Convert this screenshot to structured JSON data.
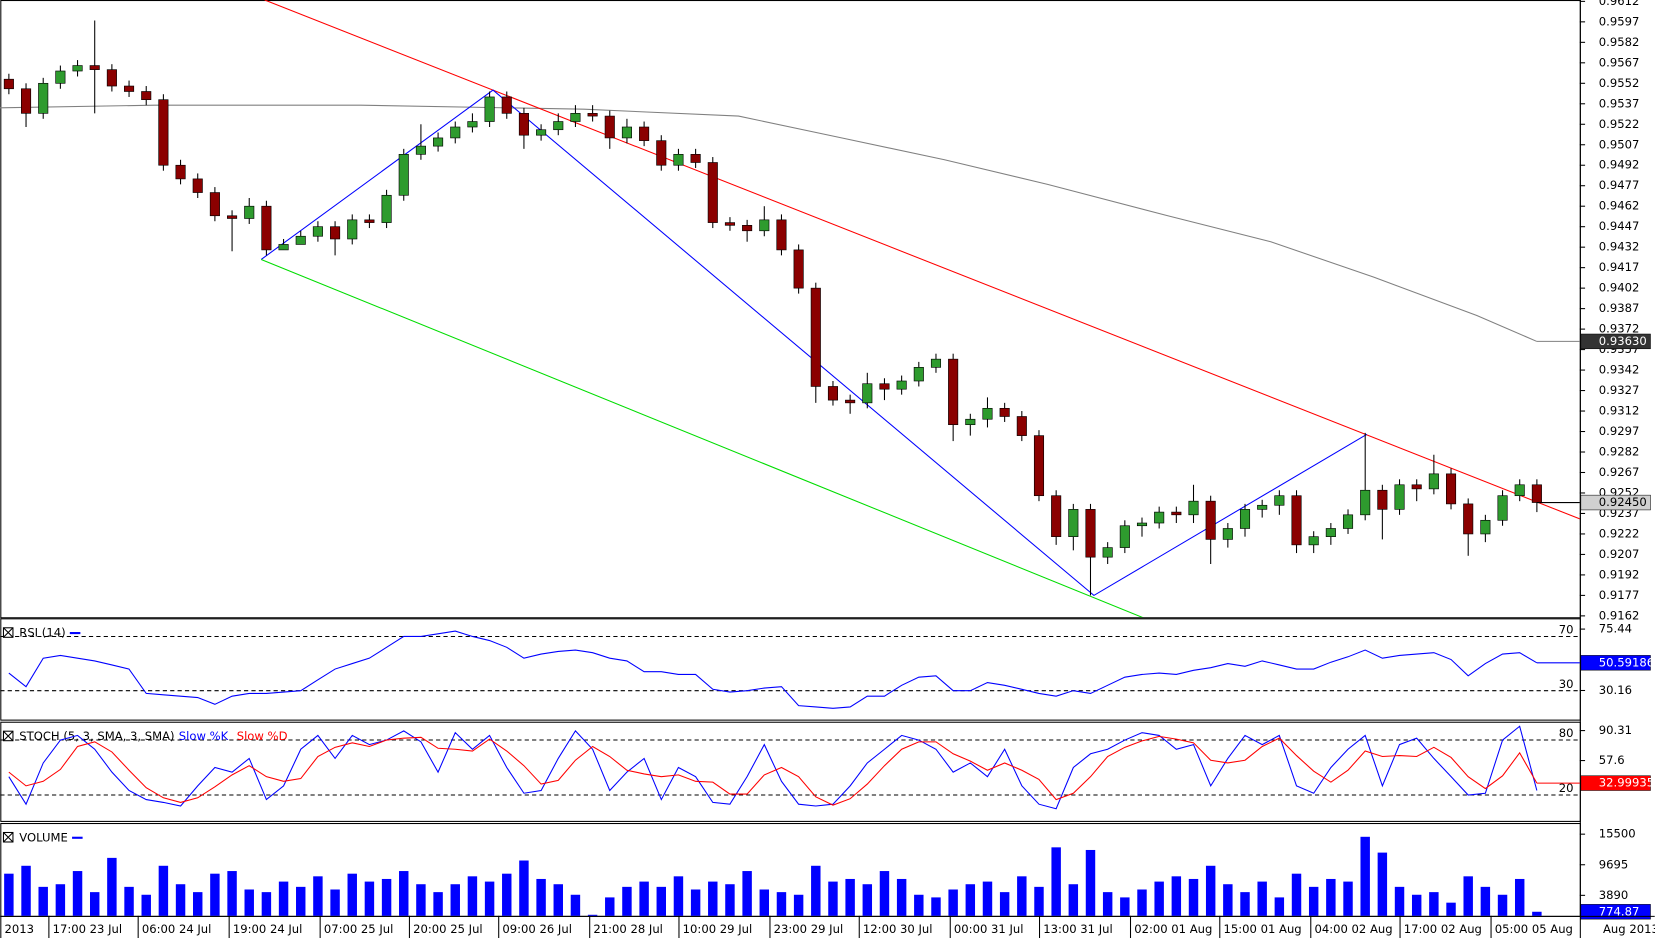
{
  "chart_data": [
    {
      "type": "candlestick",
      "xlim": [
        0,
        92
      ],
      "ylim": [
        0.9161,
        0.9613
      ],
      "yticks": [
        0.9162,
        0.9177,
        0.9192,
        0.9207,
        0.9222,
        0.9237,
        0.9252,
        0.9267,
        0.9282,
        0.9297,
        0.9312,
        0.9327,
        0.9342,
        0.9357,
        0.9372,
        0.9387,
        0.9402,
        0.9417,
        0.9432,
        0.9447,
        0.9462,
        0.9477,
        0.9492,
        0.9507,
        0.9522,
        0.9537,
        0.9552,
        0.9567,
        0.9582,
        0.9597,
        0.9612
      ],
      "up_color": "#2e9b2e",
      "down_color": "#8b0000",
      "open": [
        0.9555,
        0.9548,
        0.953,
        0.9552,
        0.9561,
        0.9565,
        0.9562,
        0.955,
        0.9546,
        0.954,
        0.9492,
        0.9482,
        0.9472,
        0.9455,
        0.9453,
        0.9462,
        0.943,
        0.9434,
        0.944,
        0.9447,
        0.9438,
        0.9452,
        0.945,
        0.947,
        0.95,
        0.9506,
        0.9512,
        0.952,
        0.9524,
        0.9542,
        0.953,
        0.9514,
        0.9518,
        0.9524,
        0.953,
        0.9528,
        0.9512,
        0.952,
        0.951,
        0.9492,
        0.95,
        0.9494,
        0.945,
        0.9448,
        0.9444,
        0.9452,
        0.943,
        0.9402,
        0.933,
        0.932,
        0.9318,
        0.9332,
        0.9328,
        0.9334,
        0.9344,
        0.935,
        0.9302,
        0.9306,
        0.9314,
        0.9308,
        0.9294,
        0.925,
        0.922,
        0.924,
        0.9205,
        0.9212,
        0.9228,
        0.923,
        0.9238,
        0.9236,
        0.9246,
        0.9218,
        0.9226,
        0.924,
        0.9243,
        0.925,
        0.9214,
        0.922,
        0.9226,
        0.9236,
        0.9254,
        0.924,
        0.9258,
        0.9255,
        0.9266,
        0.9244,
        0.9222,
        0.9232,
        0.925,
        0.9258
      ],
      "high": [
        0.9559,
        0.9552,
        0.9556,
        0.9565,
        0.9569,
        0.9598,
        0.9566,
        0.9554,
        0.955,
        0.9544,
        0.9496,
        0.9486,
        0.9476,
        0.9459,
        0.9468,
        0.9466,
        0.9438,
        0.9444,
        0.9451,
        0.9451,
        0.9456,
        0.9456,
        0.9474,
        0.9504,
        0.9522,
        0.9516,
        0.9524,
        0.953,
        0.9546,
        0.9546,
        0.9534,
        0.9522,
        0.953,
        0.9536,
        0.9536,
        0.9532,
        0.9526,
        0.9524,
        0.9514,
        0.9504,
        0.9504,
        0.9498,
        0.9454,
        0.9452,
        0.9462,
        0.9456,
        0.9434,
        0.9406,
        0.9334,
        0.9324,
        0.934,
        0.9336,
        0.9338,
        0.9348,
        0.9354,
        0.9354,
        0.931,
        0.9322,
        0.9318,
        0.9312,
        0.9298,
        0.9254,
        0.9244,
        0.9244,
        0.9216,
        0.9232,
        0.9234,
        0.9242,
        0.9242,
        0.9258,
        0.925,
        0.923,
        0.9244,
        0.9247,
        0.9254,
        0.9254,
        0.9224,
        0.923,
        0.924,
        0.9296,
        0.9258,
        0.9262,
        0.9262,
        0.928,
        0.927,
        0.9248,
        0.9236,
        0.9254,
        0.9262,
        0.9262
      ],
      "low": [
        0.9544,
        0.952,
        0.9526,
        0.9548,
        0.9557,
        0.953,
        0.9546,
        0.9542,
        0.9536,
        0.9488,
        0.9478,
        0.9468,
        0.9451,
        0.9429,
        0.9449,
        0.9426,
        0.943,
        0.9436,
        0.9436,
        0.9426,
        0.9434,
        0.9446,
        0.9446,
        0.9466,
        0.9496,
        0.9502,
        0.9508,
        0.9516,
        0.952,
        0.9526,
        0.9504,
        0.951,
        0.9514,
        0.952,
        0.9524,
        0.9504,
        0.9508,
        0.9506,
        0.9488,
        0.9488,
        0.949,
        0.9446,
        0.9444,
        0.9436,
        0.944,
        0.9426,
        0.9398,
        0.9318,
        0.9316,
        0.931,
        0.9314,
        0.932,
        0.9324,
        0.933,
        0.934,
        0.929,
        0.9294,
        0.93,
        0.9304,
        0.929,
        0.9246,
        0.9214,
        0.921,
        0.9177,
        0.92,
        0.9208,
        0.922,
        0.9226,
        0.923,
        0.923,
        0.92,
        0.9212,
        0.922,
        0.9234,
        0.9236,
        0.9208,
        0.9208,
        0.9214,
        0.9222,
        0.9232,
        0.9218,
        0.9236,
        0.9246,
        0.9251,
        0.924,
        0.9206,
        0.9216,
        0.9228,
        0.9246,
        0.9238
      ],
      "close": [
        0.9548,
        0.953,
        0.9552,
        0.9561,
        0.9565,
        0.9562,
        0.955,
        0.9546,
        0.954,
        0.9492,
        0.9482,
        0.9472,
        0.9455,
        0.9453,
        0.9462,
        0.943,
        0.9434,
        0.944,
        0.9447,
        0.9438,
        0.9452,
        0.945,
        0.947,
        0.95,
        0.9506,
        0.9512,
        0.952,
        0.9524,
        0.9542,
        0.953,
        0.9514,
        0.9518,
        0.9524,
        0.953,
        0.9528,
        0.9512,
        0.952,
        0.951,
        0.9492,
        0.95,
        0.9494,
        0.945,
        0.9448,
        0.9444,
        0.9452,
        0.943,
        0.9402,
        0.933,
        0.932,
        0.9318,
        0.9332,
        0.9328,
        0.9334,
        0.9344,
        0.935,
        0.9302,
        0.9306,
        0.9314,
        0.9308,
        0.9294,
        0.925,
        0.922,
        0.924,
        0.9205,
        0.9212,
        0.9228,
        0.923,
        0.9238,
        0.9236,
        0.9246,
        0.9218,
        0.9226,
        0.924,
        0.9243,
        0.925,
        0.9214,
        0.922,
        0.9226,
        0.9236,
        0.9254,
        0.924,
        0.9258,
        0.9255,
        0.9266,
        0.9244,
        0.9222,
        0.9232,
        0.925,
        0.9258,
        0.9245
      ],
      "last_label": {
        "value": 0.9245,
        "label": "0.92450"
      },
      "overlays": [
        {
          "color": "#808080",
          "x": [
            0,
            9,
            21,
            34,
            43,
            49,
            55,
            61,
            68,
            74,
            80,
            86,
            89.5
          ],
          "values": [
            0.9534,
            0.9536,
            0.9536,
            0.9533,
            0.9528,
            0.9512,
            0.9496,
            0.9478,
            0.9455,
            0.9436,
            0.941,
            0.9382,
            0.9363
          ],
          "end_label": {
            "value": 0.9363,
            "label": "0.93630"
          }
        },
        {
          "color": "#ff0000",
          "x": [
            15.4,
            92
          ],
          "values": [
            0.9613,
            0.9233
          ]
        },
        {
          "color": "#0000ff",
          "x": [
            15.2,
            28.7,
            63.7,
            79.6
          ],
          "values": [
            0.9423,
            0.9547,
            0.9177,
            0.9295
          ]
        },
        {
          "color": "#00dd00",
          "x": [
            15.2,
            66.7
          ],
          "values": [
            0.9423,
            0.916
          ]
        }
      ]
    },
    {
      "type": "line",
      "title": "RSI (14)",
      "xlim": [
        0,
        92
      ],
      "ylim": [
        8.7,
        83.4
      ],
      "yticks": [
        30.16,
        75.44
      ],
      "levels": [
        70,
        30
      ],
      "series": [
        {
          "color": "#0000ff",
          "box": "#0000ff",
          "values": [
            43,
            33,
            54,
            56,
            54,
            52,
            49,
            46,
            28,
            27,
            26,
            25,
            20,
            26,
            28,
            28,
            29,
            30,
            38,
            46,
            50,
            54,
            62,
            70,
            70,
            72,
            74,
            70,
            67,
            62,
            54,
            57,
            59,
            60,
            58,
            54,
            52,
            44,
            44,
            42,
            42,
            31,
            29,
            30,
            32,
            33,
            19,
            18,
            17,
            18,
            26,
            26,
            34,
            40,
            41,
            30,
            30,
            36,
            34,
            31,
            28,
            26,
            30,
            28,
            34,
            40,
            42,
            43,
            42,
            45,
            47,
            50,
            48,
            52,
            49,
            46,
            46,
            51,
            55,
            60,
            54,
            56,
            57,
            58,
            53,
            41,
            50,
            57,
            58,
            50.59186
          ]
        }
      ]
    },
    {
      "type": "line",
      "title": "STOCH (5, 3, SMA, 3, SMA)",
      "xlim": [
        0,
        92
      ],
      "ylim": [
        -8.2,
        100
      ],
      "yticks": [
        57.6,
        90.31
      ],
      "levels": [
        80,
        20
      ],
      "series": [
        {
          "name": "Slow %K",
          "color": "#0000ff",
          "values": [
            40,
            10,
            55,
            80,
            85,
            70,
            45,
            25,
            15,
            12,
            8,
            30,
            50,
            45,
            60,
            15,
            30,
            70,
            85,
            60,
            85,
            75,
            80,
            90,
            78,
            45,
            88,
            70,
            85,
            50,
            22,
            25,
            60,
            90,
            70,
            25,
            45,
            60,
            15,
            50,
            40,
            12,
            10,
            40,
            75,
            35,
            10,
            8,
            10,
            30,
            55,
            70,
            85,
            80,
            70,
            45,
            55,
            40,
            70,
            30,
            10,
            5,
            50,
            65,
            70,
            80,
            88,
            85,
            70,
            75,
            30,
            60,
            85,
            75,
            85,
            30,
            22,
            50,
            70,
            85,
            30,
            75,
            82,
            60,
            40,
            20,
            22,
            80,
            95,
            25
          ]
        },
        {
          "name": "Slow %D",
          "color": "#ff0000",
          "box": "#ff0000",
          "values": [
            45,
            30,
            35,
            48,
            73,
            78,
            67,
            47,
            28,
            17,
            12,
            17,
            29,
            42,
            52,
            40,
            35,
            38,
            62,
            72,
            77,
            73,
            80,
            82,
            83,
            71,
            70,
            68,
            81,
            68,
            52,
            32,
            36,
            58,
            73,
            62,
            47,
            43,
            40,
            42,
            35,
            34,
            21,
            21,
            42,
            50,
            40,
            18,
            9,
            16,
            32,
            52,
            70,
            78,
            78,
            65,
            57,
            47,
            55,
            47,
            37,
            15,
            22,
            40,
            62,
            72,
            79,
            84,
            81,
            77,
            58,
            55,
            58,
            73,
            82,
            63,
            46,
            34,
            47,
            68,
            62,
            63,
            62,
            72,
            61,
            40,
            27,
            41,
            66,
            32.99935
          ]
        }
      ]
    },
    {
      "type": "bar",
      "title": "VOLUME",
      "xlim": [
        0,
        92
      ],
      "ylim": [
        0,
        17620
      ],
      "yticks": [
        3890,
        9695,
        15500
      ],
      "color": "#0000ff",
      "box": "#0000ff",
      "values": [
        8000,
        9500,
        5500,
        6000,
        8500,
        4500,
        11000,
        5500,
        4000,
        9500,
        6000,
        4500,
        8000,
        8500,
        5000,
        4500,
        6500,
        5500,
        7500,
        5000,
        8000,
        6500,
        7000,
        8500,
        6000,
        4500,
        6000,
        7500,
        6500,
        8000,
        10500,
        7000,
        6000,
        4000,
        200,
        3500,
        5500,
        6500,
        5500,
        7500,
        5000,
        6500,
        6000,
        8500,
        5000,
        4500,
        4000,
        9500,
        6500,
        7000,
        6000,
        8500,
        7000,
        4000,
        3500,
        5000,
        6000,
        6500,
        4500,
        7500,
        5500,
        13000,
        6000,
        12500,
        4500,
        3500,
        5000,
        6500,
        7500,
        7000,
        9500,
        6000,
        4500,
        6500,
        3500,
        8000,
        5500,
        7000,
        6500,
        15000,
        12000,
        5500,
        4000,
        4500,
        2500,
        7500,
        5500,
        4000,
        7000,
        774.87
      ],
      "xticks": [
        {
          "value": 0,
          "label": "2013"
        },
        {
          "value": 2.8,
          "label": "17:00 23 Jul"
        },
        {
          "value": 8,
          "label": "06:00 24 Jul"
        },
        {
          "value": 13.3,
          "label": "19:00 24 Jul"
        },
        {
          "value": 18.6,
          "label": "07:00 25 Jul"
        },
        {
          "value": 23.8,
          "label": "20:00 25 Jul"
        },
        {
          "value": 29,
          "label": "09:00 26 Jul"
        },
        {
          "value": 34.3,
          "label": "21:00 28 Jul"
        },
        {
          "value": 39.5,
          "label": "10:00 29 Jul"
        },
        {
          "value": 44.8,
          "label": "23:00 29 Jul"
        },
        {
          "value": 50,
          "label": "12:00 30 Jul"
        },
        {
          "value": 55.3,
          "label": "00:00 31 Jul"
        },
        {
          "value": 60.5,
          "label": "13:00 31 Jul"
        },
        {
          "value": 65.8,
          "label": "02:00 01 Aug"
        },
        {
          "value": 71,
          "label": "15:00 01 Aug"
        },
        {
          "value": 76.3,
          "label": "04:00 02 Aug"
        },
        {
          "value": 81.5,
          "label": "17:00 02 Aug"
        },
        {
          "value": 86.8,
          "label": "05:00 05 Aug"
        }
      ],
      "x_end_label": "Aug 2013"
    }
  ]
}
